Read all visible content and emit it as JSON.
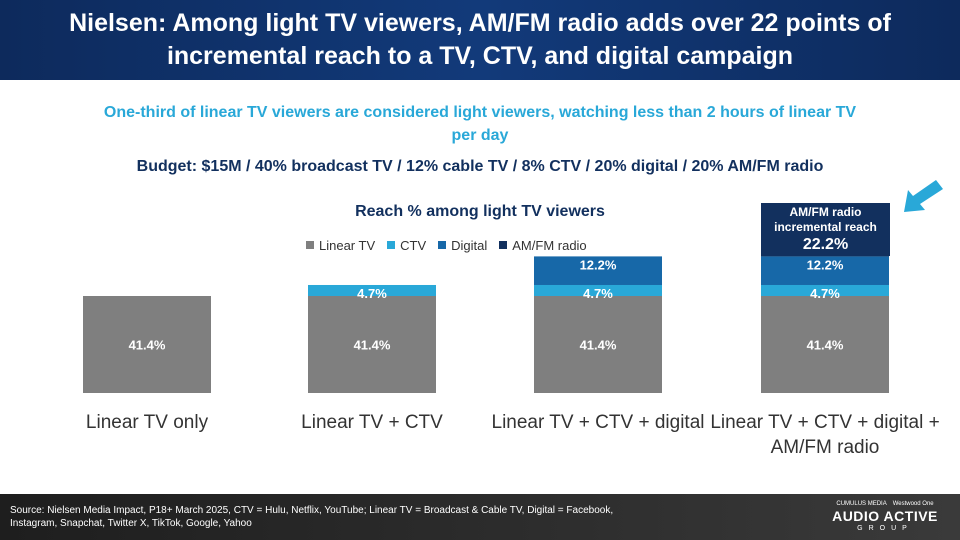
{
  "header": {
    "title": "Nielsen: Among light TV viewers, AM/FM radio adds over 22 points of incremental reach to a TV, CTV, and digital campaign"
  },
  "subtitle": "One-third of linear TV viewers are considered light viewers, watching less than 2 hours of linear TV per day",
  "budget": "Budget: $15M / 40% broadcast TV / 12% cable TV / 8% CTV / 20% digital / 20% AM/FM radio",
  "callout": {
    "label": "AM/FM radio incremental reach",
    "value": "22.2%"
  },
  "arrow_icon": "arrow-down-left-icon",
  "footer": {
    "source": "Source: Nielsen Media Impact, P18+ March 2025, CTV = Hulu, Netflix, YouTube; Linear TV = Broadcast & Cable TV, Digital = Facebook, Instagram, Snapchat, Twitter X, TikTok, Google, Yahoo",
    "logo_top_left": "CUMULUS MEDIA",
    "logo_top_right": "Westwood One",
    "logo_main": "AUDIO ACTIVE",
    "logo_sub": "GROUP"
  },
  "chart_data": {
    "type": "bar",
    "stacked": true,
    "title": "Reach % among light TV viewers",
    "categories": [
      "Linear TV only",
      "Linear TV + CTV",
      "Linear TV + CTV + digital",
      "Linear TV + CTV + digital + AM/FM radio"
    ],
    "series": [
      {
        "name": "Linear TV",
        "color": "#7f7f7f",
        "values": [
          41.4,
          41.4,
          41.4,
          41.4
        ],
        "labels": [
          "41.4%",
          "41.4%",
          "41.4%",
          "41.4%"
        ]
      },
      {
        "name": "CTV",
        "color": "#29a8d8",
        "values": [
          0,
          4.7,
          4.7,
          4.7
        ],
        "labels": [
          "",
          "4.7%",
          "4.7%",
          "4.7%"
        ]
      },
      {
        "name": "Digital",
        "color": "#1768a8",
        "values": [
          0,
          0,
          12.2,
          12.2
        ],
        "labels": [
          "",
          "",
          "12.2%",
          "12.2%"
        ]
      },
      {
        "name": "AM/FM radio",
        "color": "#12305e",
        "values": [
          0,
          0,
          0,
          22.2
        ],
        "labels": [
          "",
          "",
          "",
          ""
        ]
      }
    ],
    "legend": "top",
    "grid": false
  }
}
